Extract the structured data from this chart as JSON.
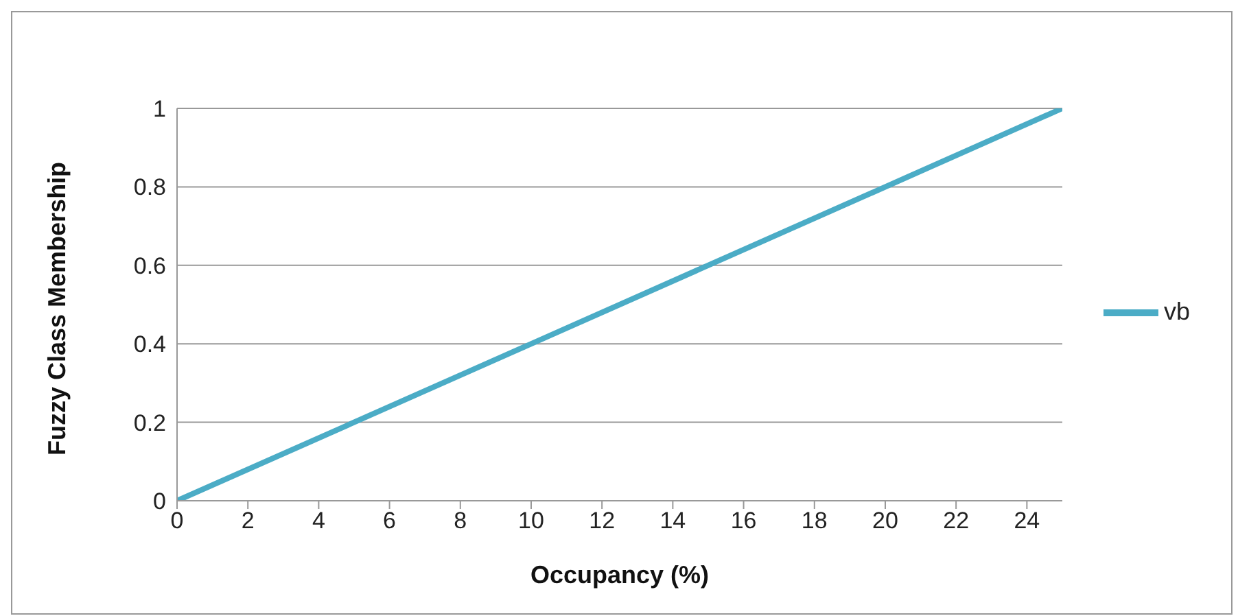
{
  "chart_data": {
    "type": "line",
    "xlabel": "Occupancy (%)",
    "ylabel": "Fuzzy Class Membership",
    "x": [
      0,
      25
    ],
    "series": [
      {
        "name": "vb",
        "color": "#4bacc6",
        "values": [
          0,
          1
        ]
      }
    ],
    "xlim": [
      0,
      25
    ],
    "xticks": [
      0,
      2,
      4,
      6,
      8,
      10,
      12,
      14,
      16,
      18,
      20,
      22,
      24
    ],
    "ylim": [
      0,
      1
    ],
    "yticks": [
      0,
      0.2,
      0.4,
      0.6,
      0.8,
      1
    ],
    "grid": "y",
    "legend": "right",
    "marker": "none",
    "line_style": "solid"
  }
}
